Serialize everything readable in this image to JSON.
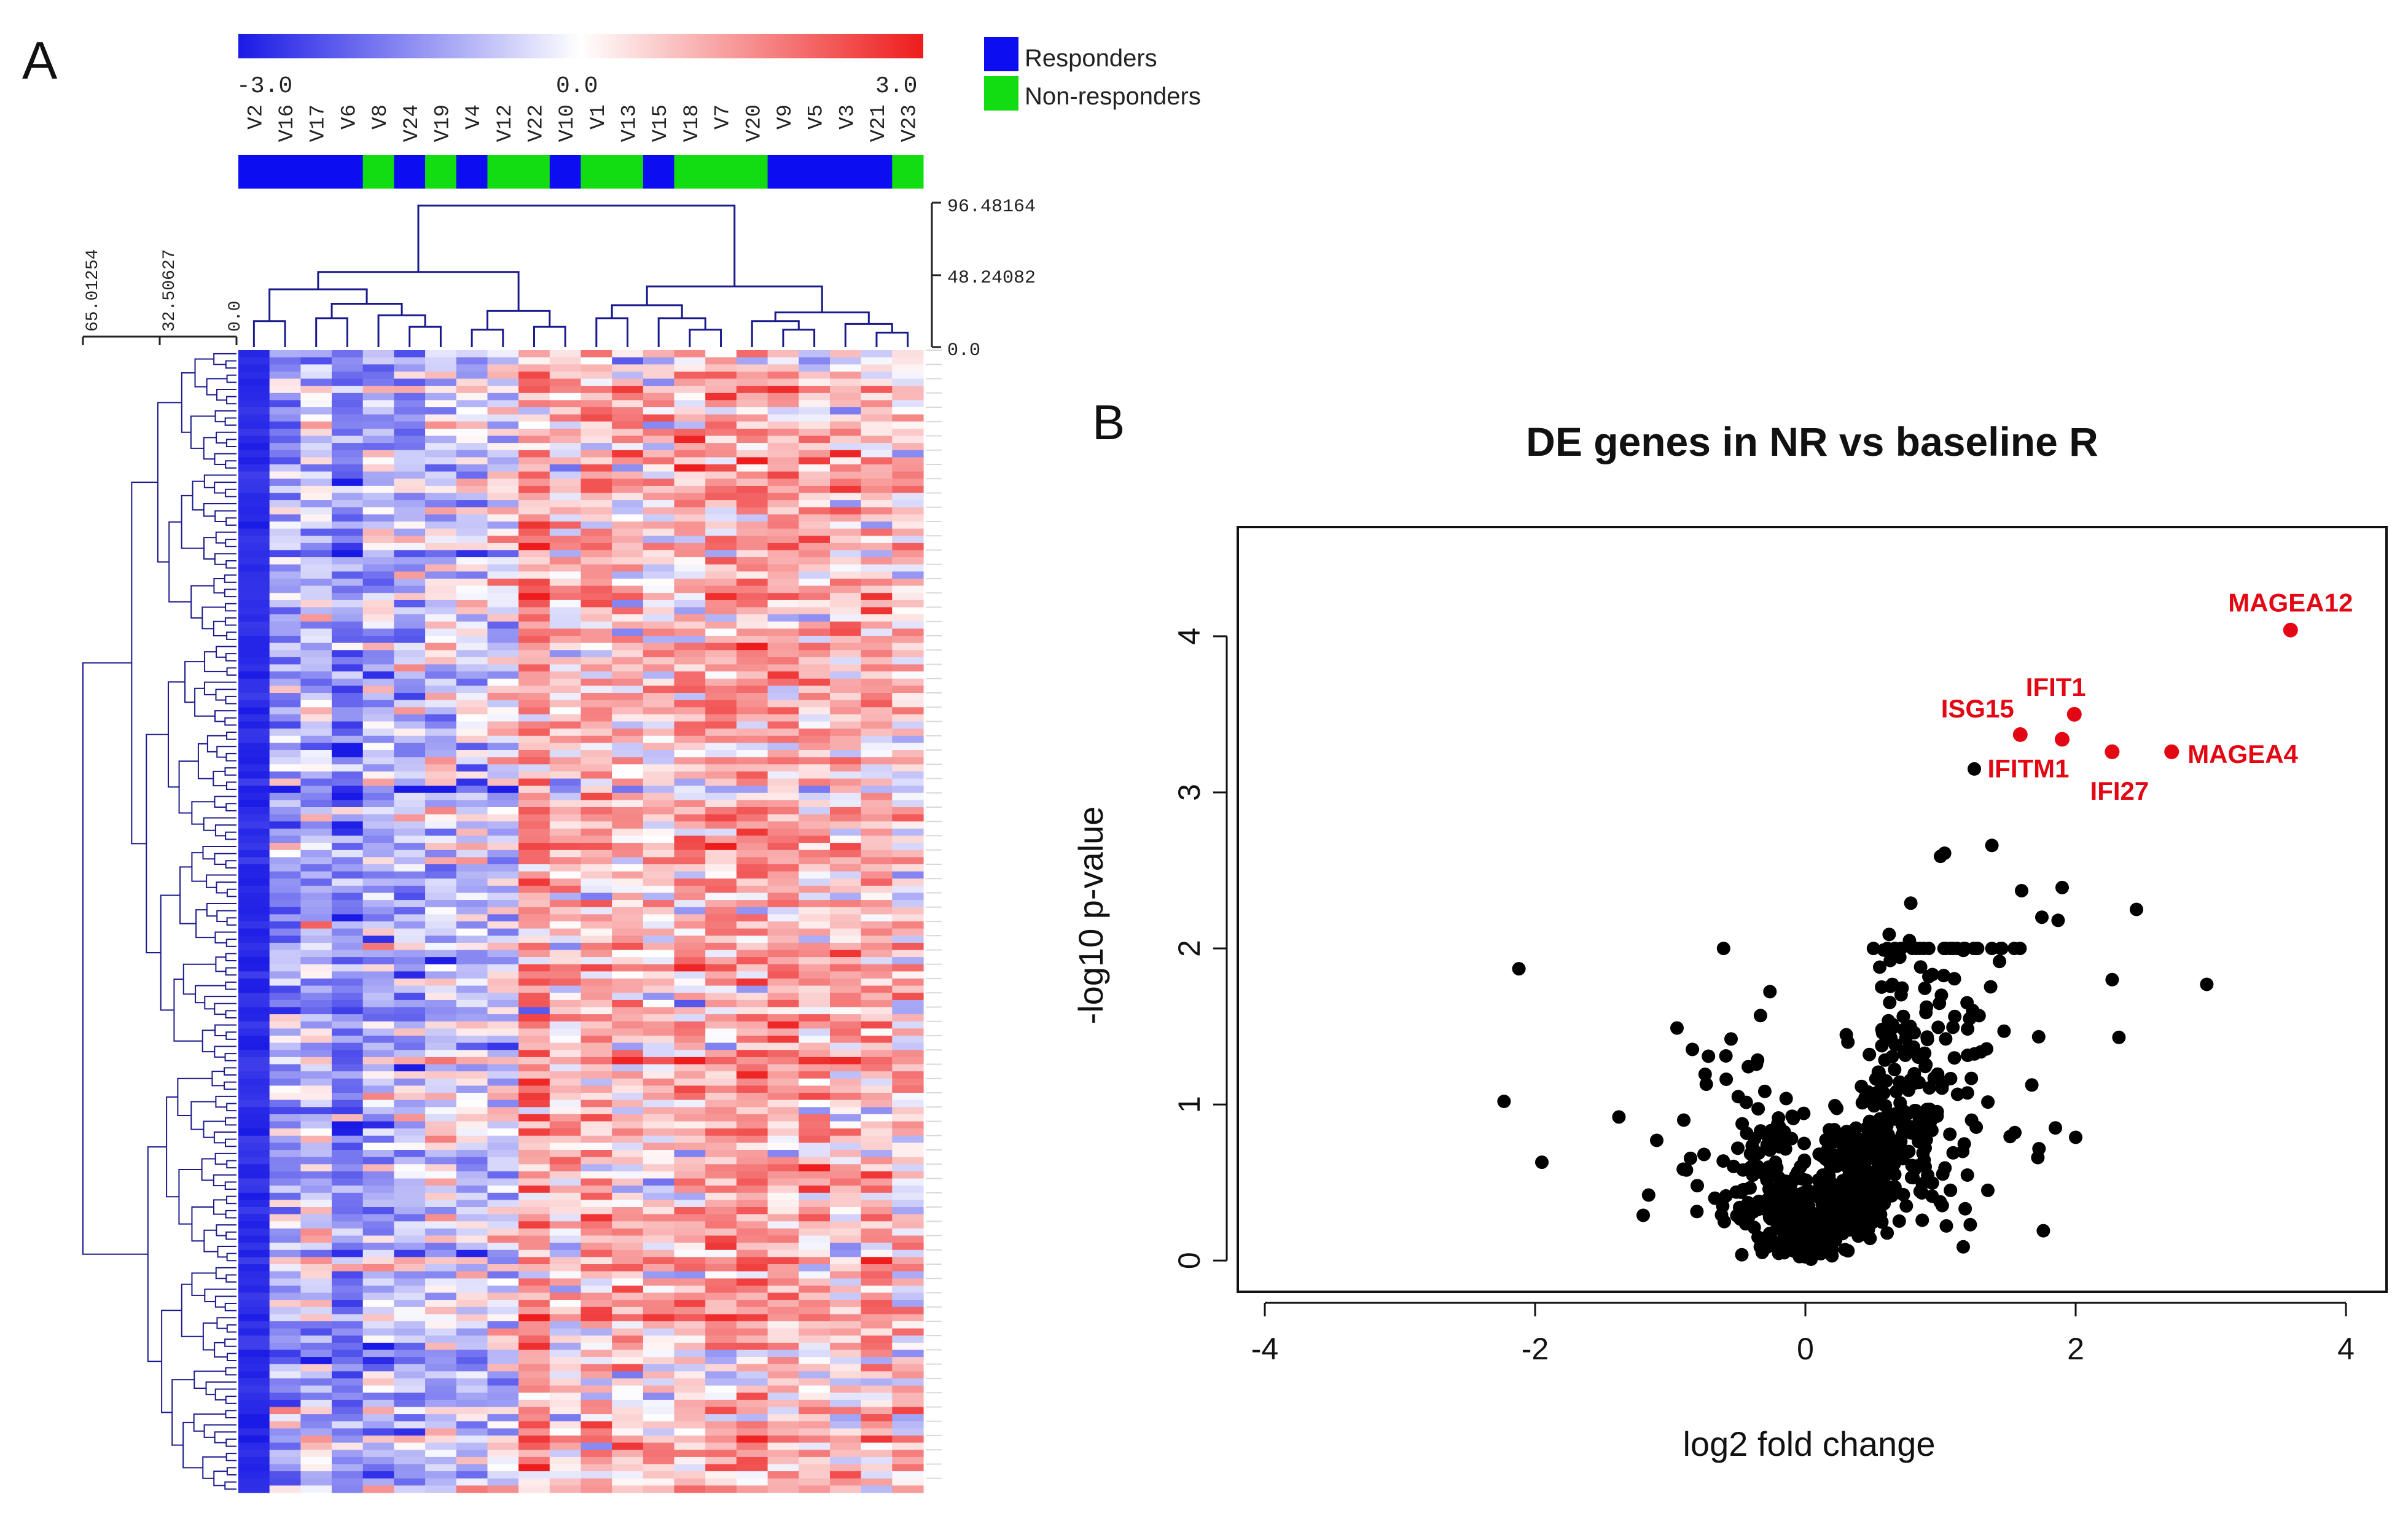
{
  "panels": {
    "a_label": "A",
    "b_label": "B"
  },
  "colors": {
    "low": "#1a1ae6",
    "mid": "#ffffff",
    "high": "#ee1c1c",
    "responder": "#0d0df2",
    "non_responder": "#11dd11",
    "dendro": "#1a1a8c",
    "points": "#000000",
    "highlight": "#e30613"
  },
  "chart_data": [
    {
      "type": "heatmap",
      "title": "",
      "color_scale": {
        "min": "-3.0",
        "mid": "0.0",
        "max": "3.0"
      },
      "legend": [
        {
          "label": "Responders",
          "group": "R"
        },
        {
          "label": "Non-responders",
          "group": "NR"
        }
      ],
      "columns": [
        "V2",
        "V16",
        "V17",
        "V6",
        "V8",
        "V24",
        "V19",
        "V4",
        "V12",
        "V22",
        "V10",
        "V1",
        "V13",
        "V15",
        "V18",
        "V7",
        "V20",
        "V9",
        "V5",
        "V3",
        "V21",
        "V23"
      ],
      "column_groups": [
        "R",
        "R",
        "R",
        "R",
        "NR",
        "R",
        "NR",
        "R",
        "NR",
        "NR",
        "R",
        "NR",
        "NR",
        "R",
        "NR",
        "NR",
        "NR",
        "R",
        "R",
        "R",
        "R",
        "NR"
      ],
      "column_bias": [
        -1.6,
        -1.2,
        -0.8,
        -1.8,
        -0.9,
        -1.0,
        -0.5,
        -0.7,
        -0.4,
        1.4,
        0.6,
        1.0,
        0.7,
        0.6,
        0.8,
        1.1,
        1.2,
        0.9,
        0.8,
        0.7,
        0.9,
        0.6
      ],
      "col_dendrogram_ticks": [
        "96.48164",
        "48.24082",
        "0.0"
      ],
      "row_dendrogram_ticks": [
        "65.01254",
        "32.50627",
        "0.0"
      ],
      "n_rows": 160
    },
    {
      "type": "scatter",
      "title": "DE genes in NR vs baseline R",
      "xlabel": "log2 fold change",
      "ylabel": "-log10 p-value",
      "xlim": [
        -4.2,
        4.3
      ],
      "ylim": [
        -0.2,
        4.7
      ],
      "xticks": [
        -4,
        -2,
        0,
        2,
        4
      ],
      "yticks": [
        0,
        1,
        2,
        3,
        4
      ],
      "highlighted": [
        {
          "label": "MAGEA12",
          "x": 3.59,
          "y": 4.04
        },
        {
          "label": "IFIT1",
          "x": 1.99,
          "y": 3.5
        },
        {
          "label": "ISG15",
          "x": 1.59,
          "y": 3.37
        },
        {
          "label": "IFITM1",
          "x": 1.9,
          "y": 3.34
        },
        {
          "label": "IFI27",
          "x": 2.27,
          "y": 3.26
        },
        {
          "label": "MAGEA4",
          "x": 2.71,
          "y": 3.26
        }
      ],
      "points": [
        [
          -2.23,
          1.02
        ],
        [
          -2.12,
          1.87
        ],
        [
          -1.95,
          0.63
        ],
        [
          -1.38,
          0.92
        ],
        [
          -1.2,
          0.29
        ],
        [
          -1.16,
          0.42
        ],
        [
          -1.1,
          0.77
        ],
        [
          -0.95,
          1.49
        ],
        [
          -0.9,
          0.9
        ],
        [
          -0.88,
          0.58
        ],
        [
          -0.8,
          0.48
        ],
        [
          -0.75,
          0.68
        ],
        [
          -0.67,
          0.4
        ],
        [
          -0.6,
          0.25
        ],
        [
          -0.55,
          1.42
        ],
        [
          -0.5,
          0.72
        ],
        [
          -0.45,
          0.3
        ],
        [
          -0.4,
          0.6
        ],
        [
          -0.35,
          0.15
        ],
        [
          -0.3,
          0.55
        ],
        [
          1.25,
          3.15
        ],
        [
          1.38,
          2.66
        ],
        [
          1.0,
          2.59
        ],
        [
          1.03,
          2.61
        ],
        [
          0.78,
          2.29
        ],
        [
          0.62,
          2.09
        ],
        [
          0.58,
          1.99
        ],
        [
          0.77,
          2.05
        ],
        [
          0.55,
          1.88
        ],
        [
          1.6,
          2.37
        ],
        [
          1.75,
          2.2
        ],
        [
          1.9,
          2.39
        ],
        [
          1.87,
          2.18
        ],
        [
          2.45,
          2.25
        ],
        [
          2.97,
          1.77
        ],
        [
          2.27,
          1.8
        ],
        [
          2.32,
          1.43
        ],
        [
          2.0,
          0.79
        ],
        [
          1.85,
          0.85
        ],
        [
          1.72,
          0.66
        ],
        [
          1.55,
          0.82
        ],
        [
          1.47,
          1.47
        ],
        [
          1.35,
          0.45
        ],
        [
          1.22,
          0.23
        ]
      ],
      "cloud": {
        "n": 680,
        "center_x": 0.42,
        "spread_x": 0.45
      }
    }
  ]
}
